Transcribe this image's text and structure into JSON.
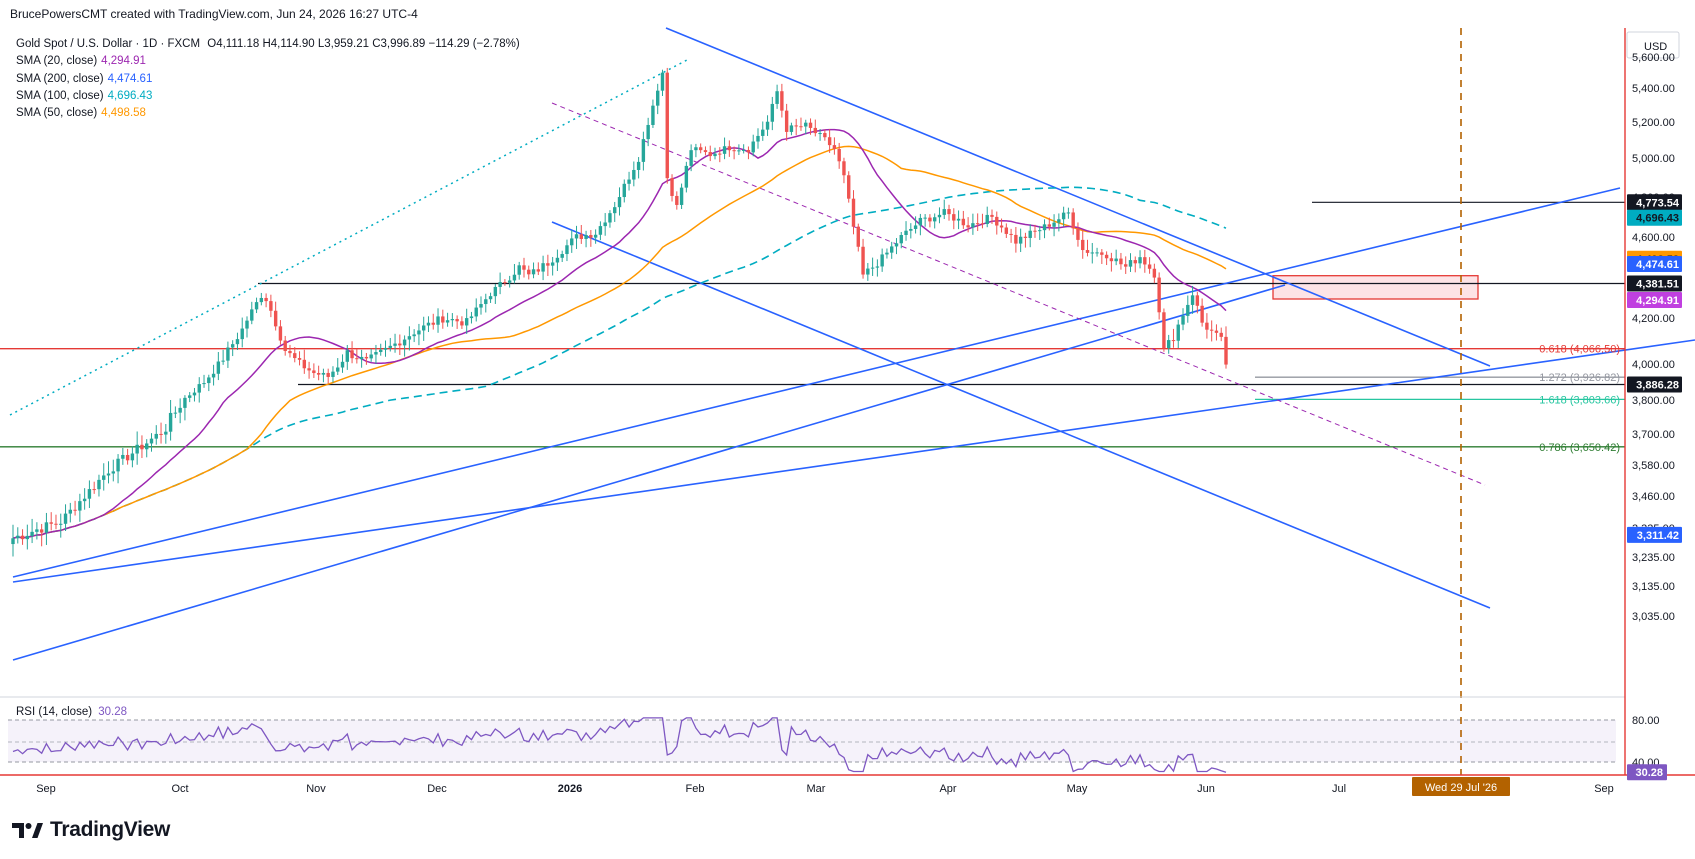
{
  "credit": "BrucePowersCMT created with TradingView.com, Jun 24, 2026 16:27 UTC-4",
  "symbol": {
    "name": "Gold Spot / U.S. Dollar · 1D · FXCM",
    "ohlc": "O4,111.18  H4,114.90  L3,959.21  C3,996.89  −114.29 (−2.78%)"
  },
  "indicators": [
    {
      "label": "SMA (20, close)",
      "value": "4,294.91",
      "color": "#9c27b0"
    },
    {
      "label": "SMA (200, close)",
      "value": "4,474.61",
      "color": "#2962ff"
    },
    {
      "label": "SMA (100, close)",
      "value": "4,696.43",
      "color": "#00acc1"
    },
    {
      "label": "SMA (50, close)",
      "value": "4,498.58",
      "color": "#ff9800"
    }
  ],
  "currency": "USD",
  "brand": "TradingView",
  "rsi": {
    "label": "RSI (14, close)",
    "value": "30.28",
    "levels": [
      "80.00",
      "40.00"
    ]
  },
  "colors": {
    "up": "#26a69a",
    "down": "#ef5350",
    "trend": "#2962ff",
    "sma20": "#9c27b0",
    "sma50": "#ff9800",
    "sma100": "#00acc1",
    "sma200": "#2962ff",
    "fib_red": "#e53935",
    "fib_green": "#2e7d32",
    "fib_teal": "#26c6a0",
    "marker": "#b36200"
  },
  "chart_data": {
    "type": "candlestick",
    "y_ticks": [
      "5,600.00",
      "5,400.00",
      "5,200.00",
      "5,000.00",
      "4,800.00",
      "4,600.00",
      "4,400.00",
      "4,200.00",
      "4,000.00",
      "3,800.00",
      "3,700.00",
      "3,580.00",
      "3,460.00",
      "3,335.00",
      "3,235.00",
      "3,135.00",
      "3,035.00"
    ],
    "x_ticks": [
      "Sep",
      "Oct",
      "Nov",
      "Dec",
      "2026",
      "Feb",
      "Mar",
      "Apr",
      "May",
      "Jun",
      "Jul",
      "Sep"
    ],
    "price_badges": [
      {
        "value": "4,773.54",
        "bg": "#131722",
        "fg": "#ffffff"
      },
      {
        "value": "4,696.43",
        "bg": "#00acc1",
        "fg": "#131722"
      },
      {
        "value": "4,498.58",
        "bg": "#ff9800",
        "fg": "#131722"
      },
      {
        "value": "4,474.61",
        "bg": "#2962ff",
        "fg": "#ffffff"
      },
      {
        "value": "4,381.51",
        "bg": "#131722",
        "fg": "#ffffff"
      },
      {
        "value": "4,294.91",
        "bg": "#c040e0",
        "fg": "#ffffff"
      },
      {
        "value": "3,886.28",
        "bg": "#131722",
        "fg": "#ffffff"
      },
      {
        "value": "3,311.42",
        "bg": "#2962ff",
        "fg": "#ffffff"
      }
    ],
    "fib_levels": [
      {
        "label": "0.618 (4,066.50)",
        "value": 4066.5
      },
      {
        "label": "1.272 (3,926.82)",
        "value": 3926.82
      },
      {
        "label": "1.618 (3,803.66)",
        "value": 3803.66
      },
      {
        "label": "0.786 (3,650.42)",
        "value": 3650.42
      }
    ],
    "horizontal_levels": [
      4773.54,
      4381.51,
      3886.28
    ],
    "resistance_zone": [
      4300,
      4420
    ],
    "date_marker": "Wed 29 Jul '26",
    "sma_last": {
      "sma20": 4294.91,
      "sma50": 4498.58,
      "sma100": 4696.43,
      "sma200": 4474.61
    },
    "last_close": 3996.89,
    "rsi_last": 30.28,
    "rsi_levels": [
      80,
      40
    ]
  }
}
